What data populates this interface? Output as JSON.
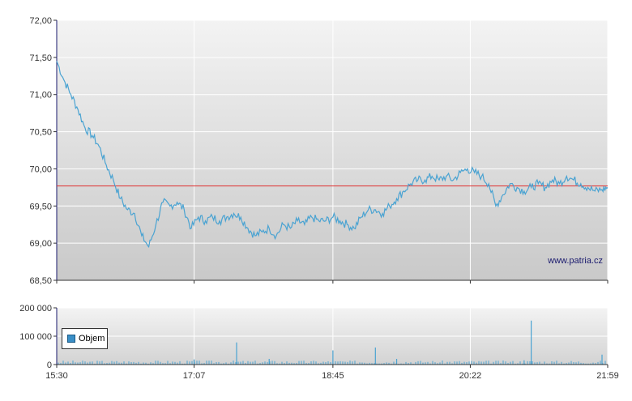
{
  "watermark": "www.patria.cz",
  "colors": {
    "price_line": "#4aa3d2",
    "reference_line": "#e03030",
    "volume_bars": "#4aa3d2",
    "grid": "#ffffff",
    "plot_bg_top": "#f2f2f2",
    "plot_bg_bottom": "#c8c8c8"
  },
  "chart_data": [
    {
      "type": "line",
      "name": "price",
      "ylim": [
        68.5,
        72.0
      ],
      "yticks": [
        "72,00",
        "71,50",
        "71,00",
        "70,50",
        "70,00",
        "69,50",
        "69,00",
        "68,50"
      ],
      "ytick_values": [
        72.0,
        71.5,
        71.0,
        70.5,
        70.0,
        69.5,
        69.0,
        68.5
      ],
      "xtick_labels": [
        "15:30",
        "17:07",
        "18:45",
        "20:22",
        "21:59"
      ],
      "xlim": [
        "15:30",
        "21:59"
      ],
      "reference_value": 69.77,
      "grid": true,
      "x": [
        "15:30",
        "15:35",
        "15:40",
        "15:45",
        "15:50",
        "15:55",
        "16:00",
        "16:05",
        "16:10",
        "16:15",
        "16:20",
        "16:25",
        "16:30",
        "16:35",
        "16:40",
        "16:45",
        "16:50",
        "16:55",
        "17:00",
        "17:05",
        "17:10",
        "17:15",
        "17:20",
        "17:25",
        "17:30",
        "17:35",
        "17:40",
        "17:45",
        "17:50",
        "17:55",
        "18:00",
        "18:05",
        "18:10",
        "18:15",
        "18:20",
        "18:25",
        "18:30",
        "18:35",
        "18:40",
        "18:45",
        "18:50",
        "18:55",
        "19:00",
        "19:05",
        "19:10",
        "19:15",
        "19:20",
        "19:25",
        "19:30",
        "19:35",
        "19:40",
        "19:45",
        "19:50",
        "19:55",
        "20:00",
        "20:05",
        "20:10",
        "20:15",
        "20:20",
        "20:25",
        "20:30",
        "20:35",
        "20:40",
        "20:45",
        "20:50",
        "20:55",
        "21:00",
        "21:05",
        "21:10",
        "21:15",
        "21:20",
        "21:25",
        "21:30",
        "21:35",
        "21:40",
        "21:45",
        "21:50",
        "21:55",
        "21:59"
      ],
      "values": [
        71.45,
        71.2,
        71.0,
        70.8,
        70.55,
        70.45,
        70.3,
        70.05,
        69.85,
        69.6,
        69.45,
        69.4,
        69.1,
        68.95,
        69.25,
        69.55,
        69.5,
        69.55,
        69.45,
        69.2,
        69.35,
        69.3,
        69.35,
        69.3,
        69.35,
        69.4,
        69.35,
        69.2,
        69.1,
        69.15,
        69.2,
        69.1,
        69.25,
        69.2,
        69.3,
        69.25,
        69.35,
        69.3,
        69.3,
        69.35,
        69.3,
        69.25,
        69.2,
        69.35,
        69.45,
        69.45,
        69.4,
        69.5,
        69.6,
        69.7,
        69.8,
        69.85,
        69.85,
        69.9,
        69.85,
        69.9,
        69.85,
        69.95,
        70.0,
        69.95,
        69.9,
        69.8,
        69.5,
        69.65,
        69.8,
        69.75,
        69.7,
        69.75,
        69.8,
        69.75,
        69.85,
        69.8,
        69.9,
        69.85,
        69.8,
        69.75,
        69.7,
        69.72,
        69.75
      ]
    },
    {
      "type": "bar",
      "name": "Objem",
      "ylim": [
        0,
        200000
      ],
      "yticks": [
        "200 000",
        "100 000",
        "0"
      ],
      "ytick_values": [
        200000,
        100000,
        0
      ],
      "xtick_labels": [
        "15:30",
        "17:07",
        "18:45",
        "20:22",
        "21:59"
      ],
      "xlim": [
        "15:30",
        "21:59"
      ],
      "legend": "Objem",
      "legend_position": "left",
      "spikes": [
        {
          "x": "17:07",
          "value": 18000
        },
        {
          "x": "17:37",
          "value": 78000
        },
        {
          "x": "18:00",
          "value": 20000
        },
        {
          "x": "18:45",
          "value": 50000
        },
        {
          "x": "19:15",
          "value": 60000
        },
        {
          "x": "19:30",
          "value": 20000
        },
        {
          "x": "21:00",
          "value": 15000
        },
        {
          "x": "21:05",
          "value": 155000
        },
        {
          "x": "21:55",
          "value": 35000
        }
      ]
    }
  ]
}
